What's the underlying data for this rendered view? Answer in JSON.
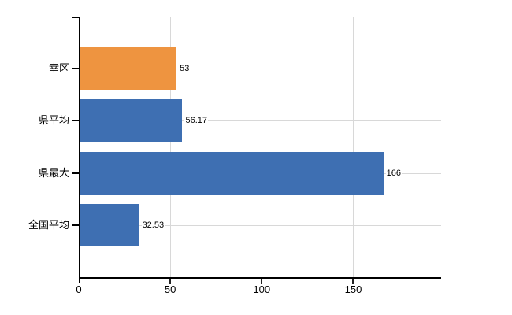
{
  "chart_data": {
    "type": "bar",
    "orientation": "horizontal",
    "title": "",
    "xlabel": "",
    "ylabel": "",
    "categories": [
      "幸区",
      "県平均",
      "県最大",
      "全国平均"
    ],
    "values": [
      53,
      56.17,
      166,
      32.53
    ],
    "value_labels": [
      "53",
      "56.17",
      "166",
      "32.53"
    ],
    "bar_colors": [
      "#EE9440",
      "#3E6FB2",
      "#3E6FB2",
      "#3E6FB2"
    ],
    "xlim": [
      0,
      198
    ],
    "x_tick_values": [
      0,
      50,
      100,
      150
    ],
    "x_tick_labels": [
      "0",
      "50",
      "100",
      "150"
    ],
    "grid": true,
    "legend": "none",
    "plot_border_top_style": "dashed"
  },
  "colors": {
    "highlight_bar": "#EE9440",
    "default_bar": "#3E6FB2",
    "gridline": "#D8D8D8",
    "axis": "#000000",
    "text": "#000000",
    "background": "#FFFFFF"
  }
}
